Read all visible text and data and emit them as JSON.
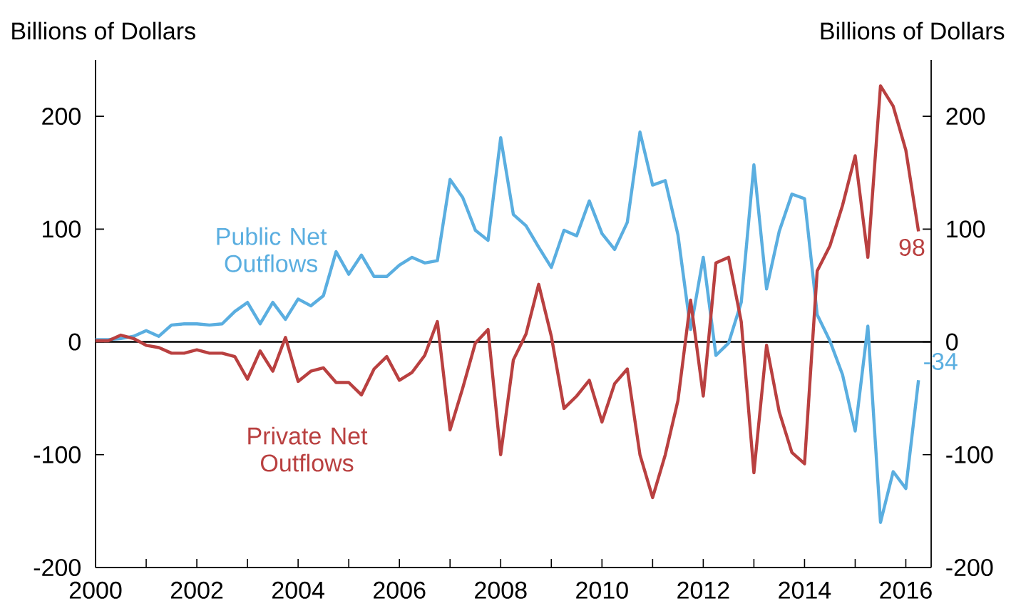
{
  "chart_data": {
    "type": "line",
    "ylabel": "Billions of Dollars",
    "y2label": "Billions of Dollars",
    "x": [
      2000,
      2000.25,
      2000.5,
      2000.75,
      2001,
      2001.25,
      2001.5,
      2001.75,
      2002,
      2002.25,
      2002.5,
      2002.75,
      2003,
      2003.25,
      2003.5,
      2003.75,
      2004,
      2004.25,
      2004.5,
      2004.75,
      2005,
      2005.25,
      2005.5,
      2005.75,
      2006,
      2006.25,
      2006.5,
      2006.75,
      2007,
      2007.25,
      2007.5,
      2007.75,
      2008,
      2008.25,
      2008.5,
      2008.75,
      2009,
      2009.25,
      2009.5,
      2009.75,
      2010,
      2010.25,
      2010.5,
      2010.75,
      2011,
      2011.25,
      2011.5,
      2011.75,
      2012,
      2012.25,
      2012.5,
      2012.75,
      2013,
      2013.25,
      2013.5,
      2013.75,
      2014,
      2014.25,
      2014.5,
      2014.75,
      2015,
      2015.25,
      2015.5,
      2015.75,
      2016,
      2016.25
    ],
    "series": [
      {
        "name": "Public Net Outflows",
        "color": "#5aaee0",
        "values": [
          2,
          2,
          3,
          5,
          10,
          5,
          15,
          16,
          16,
          15,
          16,
          27,
          35,
          16,
          35,
          20,
          38,
          32,
          41,
          80,
          60,
          77,
          58,
          58,
          68,
          75,
          70,
          72,
          144,
          128,
          99,
          90,
          181,
          113,
          103,
          84,
          66,
          99,
          94,
          125,
          96,
          82,
          106,
          186,
          139,
          143,
          95,
          11,
          75,
          -12,
          -1,
          35,
          157,
          47,
          98,
          131,
          127,
          24,
          1,
          -29,
          -79,
          14,
          -160,
          -115,
          -130,
          -34
        ],
        "value_labels": [
          null,
          null,
          null,
          null,
          null,
          null,
          null,
          null,
          null,
          null,
          null,
          null,
          null,
          null,
          null,
          null,
          null,
          null,
          null,
          null,
          null,
          null,
          null,
          null,
          null,
          null,
          null,
          null,
          null,
          null,
          null,
          null,
          null,
          null,
          null,
          null,
          null,
          null,
          null,
          null,
          null,
          null,
          null,
          null,
          null,
          null,
          null,
          null,
          null,
          null,
          null,
          null,
          null,
          null,
          null,
          null,
          null,
          null,
          null,
          null,
          null,
          null,
          null,
          null,
          null,
          "-34"
        ]
      },
      {
        "name": "Private Net Outflows",
        "color": "#b94040",
        "values": [
          1,
          1,
          6,
          3,
          -3,
          -5,
          -10,
          -10,
          -7,
          -10,
          -10,
          -13,
          -33,
          -8,
          -26,
          4,
          -35,
          -26,
          -23,
          -36,
          -36,
          -47,
          -24,
          -13,
          -34,
          -27,
          -12,
          18,
          -78,
          -41,
          -1,
          11,
          -100,
          -16,
          7,
          51,
          5,
          -59,
          -48,
          -34,
          -71,
          -37,
          -24,
          -100,
          -138,
          -100,
          -52,
          37,
          -48,
          70,
          75,
          18,
          -116,
          -3,
          -62,
          -98,
          -108,
          63,
          85,
          121,
          165,
          75,
          227,
          209,
          170,
          98
        ],
        "value_labels": [
          null,
          null,
          null,
          null,
          null,
          null,
          null,
          null,
          null,
          null,
          null,
          null,
          null,
          null,
          null,
          null,
          null,
          null,
          null,
          null,
          null,
          null,
          null,
          null,
          null,
          null,
          null,
          null,
          null,
          null,
          null,
          null,
          null,
          null,
          null,
          null,
          null,
          null,
          null,
          null,
          null,
          null,
          null,
          null,
          null,
          null,
          null,
          null,
          null,
          null,
          null,
          null,
          null,
          null,
          null,
          null,
          null,
          null,
          null,
          null,
          null,
          null,
          null,
          null,
          null,
          "98"
        ]
      }
    ],
    "xlim": [
      2000,
      2016.5
    ],
    "xticks": [
      2000,
      {
        "value": 2001,
        "label": null
      },
      2002,
      {
        "value": 2003,
        "label": null
      },
      2004,
      {
        "value": 2005,
        "label": null
      },
      2006,
      {
        "value": 2007,
        "label": null
      },
      2008,
      {
        "value": 2009,
        "label": null
      },
      2010,
      {
        "value": 2011,
        "label": null
      },
      2012,
      {
        "value": 2013,
        "label": null
      },
      2014,
      {
        "value": 2015,
        "label": null
      },
      2016
    ],
    "ylim": [
      -200,
      250
    ],
    "yticks": [
      -200,
      -100,
      0,
      100,
      200
    ],
    "y2lim": [
      -200,
      250
    ],
    "y2ticks": [
      -200,
      -100,
      0,
      100,
      200
    ],
    "ref_lines": [
      {
        "axis": "y",
        "value": 0,
        "color": "#000000"
      }
    ],
    "grid": false,
    "marker": "none",
    "line_style": "solid"
  }
}
